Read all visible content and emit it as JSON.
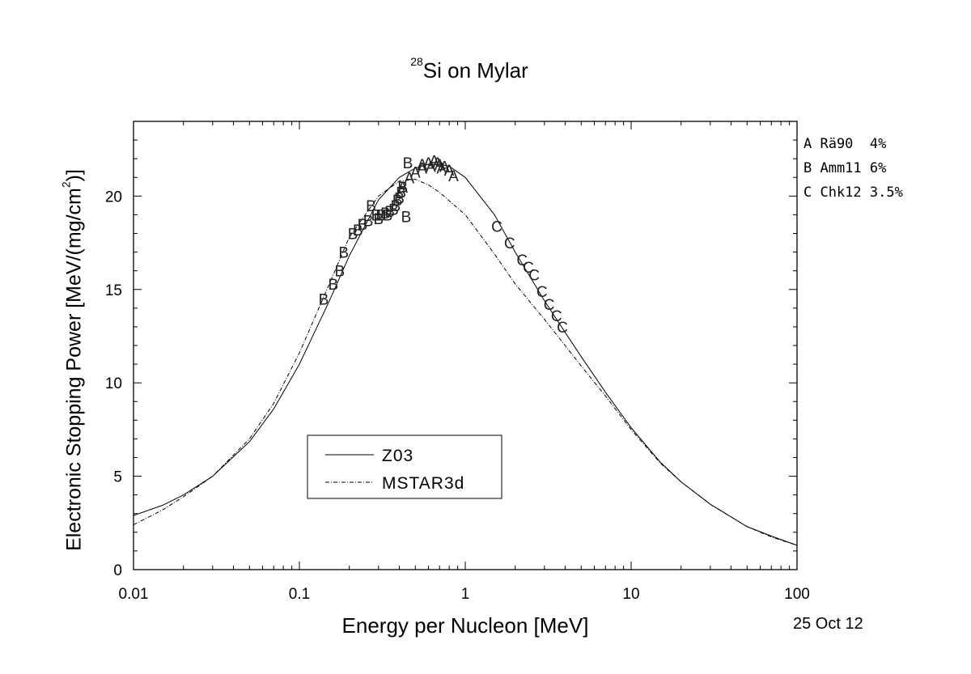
{
  "chart_data": {
    "type": "scatter",
    "title": {
      "superscript": "28",
      "text": "Si on Mylar"
    },
    "xlabel": "Energy per Nucleon [MeV]",
    "ylabel": {
      "text": "Electronic Stopping Power [MeV/(mg/cm",
      "superscript": "2",
      "suffix": ")]"
    },
    "x_scale": "log",
    "xlim": [
      0.01,
      100
    ],
    "ylim": [
      0,
      24
    ],
    "x_ticks": [
      0.01,
      0.1,
      1,
      10,
      100
    ],
    "x_tick_labels": [
      "0.01",
      "0.1",
      "1",
      "10",
      "100"
    ],
    "y_ticks": [
      0,
      5,
      10,
      15,
      20
    ],
    "y_tick_labels": [
      "0",
      "5",
      "10",
      "15",
      "20"
    ],
    "legend_position": "lower-left",
    "series": [
      {
        "name": "Z03",
        "style": "solid",
        "x": [
          0.01,
          0.015,
          0.02,
          0.03,
          0.05,
          0.07,
          0.1,
          0.15,
          0.2,
          0.3,
          0.4,
          0.5,
          0.6,
          0.7,
          0.8,
          1,
          1.5,
          2,
          3,
          4,
          5,
          7,
          10,
          15,
          20,
          30,
          50,
          70,
          100
        ],
        "y": [
          2.9,
          3.45,
          4.0,
          5.0,
          6.85,
          8.6,
          11.0,
          14.3,
          16.8,
          19.8,
          21.0,
          21.5,
          21.7,
          21.7,
          21.6,
          21.0,
          19.0,
          17.0,
          14.4,
          12.7,
          11.4,
          9.5,
          7.6,
          5.75,
          4.7,
          3.5,
          2.3,
          1.8,
          1.3
        ]
      },
      {
        "name": "MSTAR3d",
        "style": "dash-dot",
        "x": [
          0.01,
          0.015,
          0.02,
          0.03,
          0.05,
          0.07,
          0.1,
          0.15,
          0.2,
          0.3,
          0.4,
          0.5,
          0.6,
          0.7,
          1,
          1.5,
          2,
          3,
          4,
          5,
          7,
          10,
          15,
          20,
          30,
          50,
          70,
          100
        ],
        "y": [
          2.4,
          3.2,
          3.9,
          5.0,
          7.0,
          8.9,
          11.6,
          15.2,
          17.8,
          20.0,
          20.8,
          20.9,
          20.6,
          20.2,
          19.0,
          16.9,
          15.3,
          13.4,
          12.0,
          10.9,
          9.3,
          7.5,
          5.7,
          4.7,
          3.5,
          2.3,
          1.75,
          1.3
        ]
      }
    ],
    "data_points": [
      {
        "label": "A",
        "x": [
          0.42,
          0.46,
          0.5,
          0.55,
          0.6,
          0.65,
          0.7,
          0.75,
          0.8,
          0.85,
          0.55,
          0.62,
          0.68,
          0.72
        ],
        "y": [
          20.5,
          21.0,
          21.3,
          21.7,
          21.8,
          21.9,
          21.7,
          21.6,
          21.4,
          21.1,
          21.5,
          21.6,
          21.8,
          21.5
        ]
      },
      {
        "label": "B",
        "x": [
          0.14,
          0.16,
          0.175,
          0.185,
          0.21,
          0.225,
          0.24,
          0.26,
          0.27,
          0.29,
          0.31,
          0.33,
          0.35,
          0.37,
          0.38,
          0.39,
          0.41,
          0.42,
          0.44,
          0.45,
          0.3,
          0.34,
          0.4
        ],
        "y": [
          14.5,
          15.3,
          16.0,
          17.0,
          18.0,
          18.2,
          18.5,
          18.7,
          19.5,
          19.0,
          19.0,
          19.1,
          19.2,
          19.3,
          19.5,
          19.8,
          20.2,
          20.5,
          18.9,
          21.8,
          18.8,
          19.0,
          19.9
        ]
      },
      {
        "label": "C",
        "x": [
          1.55,
          1.85,
          2.2,
          2.4,
          2.6,
          2.9,
          3.2,
          3.55,
          3.85
        ],
        "y": [
          18.4,
          17.5,
          16.6,
          16.2,
          15.8,
          14.9,
          14.2,
          13.6,
          13.0
        ]
      }
    ],
    "references": [
      "A Rä90  4%",
      "B Amm11 6%",
      "C Chk12 3.5%"
    ],
    "date": "25 Oct 12"
  }
}
